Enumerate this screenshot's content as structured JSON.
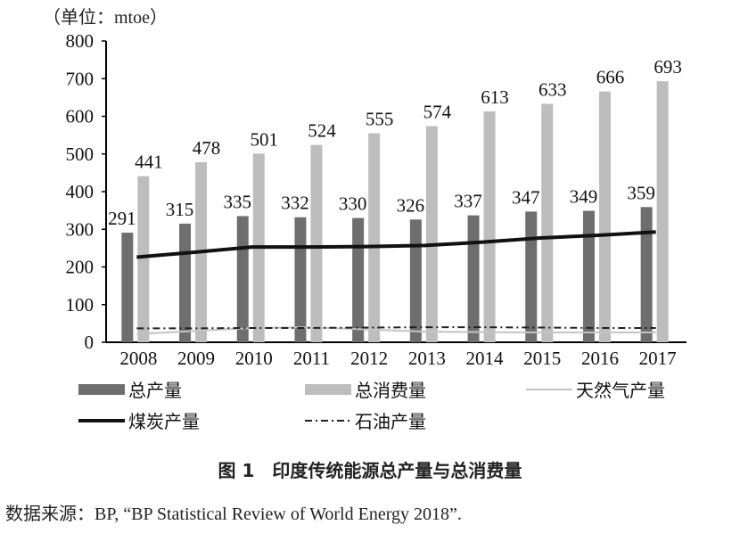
{
  "chart_data": {
    "type": "bar",
    "unit_label": "（单位：mtoe）",
    "categories": [
      "2008",
      "2009",
      "2010",
      "2011",
      "2012",
      "2013",
      "2014",
      "2015",
      "2016",
      "2017"
    ],
    "ylim": [
      0,
      800
    ],
    "yticks": [
      0,
      100,
      200,
      300,
      400,
      500,
      600,
      700,
      800
    ],
    "grid": false,
    "legend_placement": "bottom",
    "series": [
      {
        "name": "总产量",
        "kind": "bar",
        "color": "#6e6e6e",
        "values": [
          291,
          315,
          335,
          332,
          330,
          326,
          337,
          347,
          349,
          359
        ]
      },
      {
        "name": "总消费量",
        "kind": "bar",
        "color": "#bdbdbd",
        "values": [
          441,
          478,
          501,
          524,
          555,
          574,
          613,
          633,
          666,
          693
        ]
      },
      {
        "name": "天然气产量",
        "kind": "line",
        "style": "solid-thin",
        "color": "#c4c4c4",
        "values": [
          22,
          30,
          38,
          40,
          34,
          28,
          27,
          26,
          26,
          26
        ]
      },
      {
        "name": "煤炭产量",
        "kind": "line",
        "style": "solid-thick",
        "color": "#111111",
        "values": [
          226,
          239,
          253,
          253,
          254,
          257,
          266,
          277,
          284,
          293
        ]
      },
      {
        "name": "石油产量",
        "kind": "line",
        "style": "dash-dot",
        "color": "#222222",
        "values": [
          37,
          37,
          38,
          38,
          39,
          40,
          40,
          39,
          38,
          38
        ]
      }
    ]
  },
  "caption": "图 1　印度传统能源总产量与总消费量",
  "source": "数据来源：BP, “BP Statistical Review of World Energy 2018”."
}
